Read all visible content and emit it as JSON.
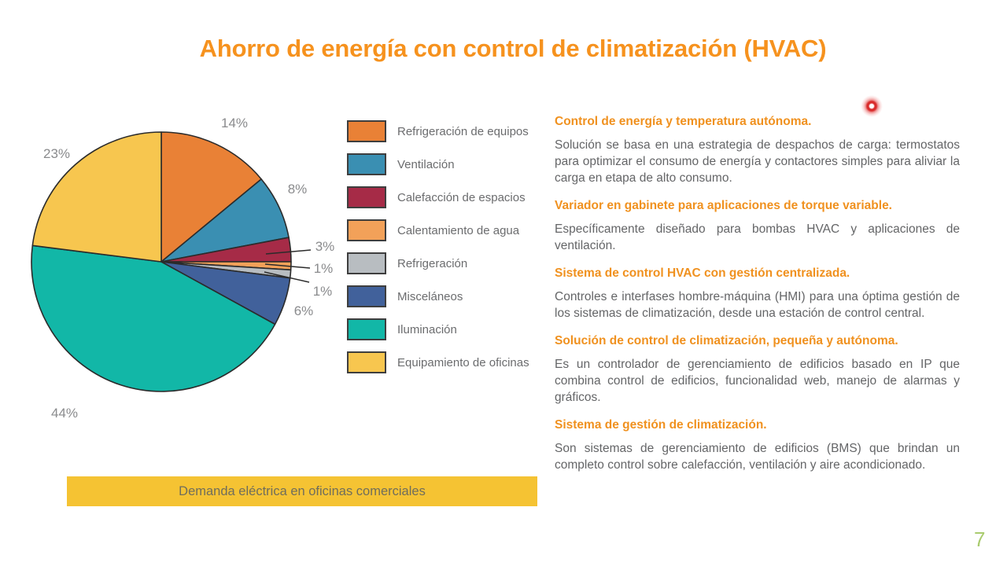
{
  "slide": {
    "title": "Ahorro de energía con control de climatización (HVAC)",
    "page_number": "7"
  },
  "chart_data": {
    "type": "pie",
    "title": "Demanda eléctrica en oficinas comerciales",
    "start_angle_deg": 0,
    "direction": "clockwise",
    "legend_position": "right",
    "slices": [
      {
        "label": "Refrigeración de equipos",
        "value": 14,
        "pct": "14%",
        "color": "#E98136"
      },
      {
        "label": "Ventilación",
        "value": 8,
        "pct": "8%",
        "color": "#3A8FB2"
      },
      {
        "label": "Calefacción de espacios",
        "value": 3,
        "pct": "3%",
        "color": "#A62B47"
      },
      {
        "label": "Calentamiento de agua",
        "value": 1,
        "pct": "1%",
        "color": "#F2A159"
      },
      {
        "label": "Refrigeración",
        "value": 1,
        "pct": "1%",
        "color": "#B8BDC1"
      },
      {
        "label": "Misceláneos",
        "value": 6,
        "pct": "6%",
        "color": "#41619B"
      },
      {
        "label": "Iluminación",
        "value": 44,
        "pct": "44%",
        "color": "#12B7A7"
      },
      {
        "label": "Equipamiento de oficinas",
        "value": 23,
        "pct": "23%",
        "color": "#F7C64F"
      }
    ]
  },
  "banner": {
    "label": "Demanda eléctrica en oficinas comerciales",
    "background": "#F5C333"
  },
  "sections": [
    {
      "heading": "Control de energía y temperatura autónoma.",
      "body": "Solución se basa en una estrategia de despachos de carga: termostatos para optimizar el consumo de energía y contactores simples para aliviar la carga en etapa de alto consumo."
    },
    {
      "heading": "Variador en gabinete para aplicaciones de torque variable.",
      "body": "Específicamente diseñado para bombas HVAC y aplicaciones de ventilación."
    },
    {
      "heading": "Sistema de control HVAC con gestión centralizada.",
      "body": "Controles e interfases hombre-máquina (HMI) para una óptima gestión de los sistemas de climatización, desde una estación de control central."
    },
    {
      "heading": "Solución de control de climatización, pequeña y autónoma.",
      "body": "Es un controlador de gerenciamiento de edificios basado en IP que combina control de edificios, funcionalidad web, manejo de alarmas y gráficos."
    },
    {
      "heading": "Sistema de gestión de climatización.",
      "body": "Son sistemas de gerenciamiento de edificios (BMS) que brindan un completo control sobre calefacción, ventilación y aire acondicionado."
    }
  ],
  "colors": {
    "title_orange": "#F6921E",
    "heading_orange": "#F0911F",
    "body_gray": "#646567",
    "pct_label_gray": "#8A8B8D",
    "banner_yellow": "#F5C333",
    "page_number_green": "#A9CB6E",
    "laser_red": "#D92B2B"
  }
}
